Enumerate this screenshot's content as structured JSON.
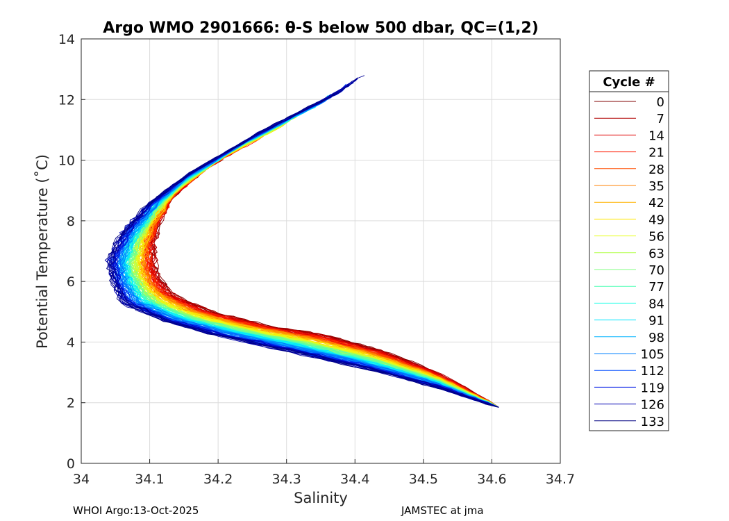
{
  "chart_data": {
    "type": "line",
    "title": "Argo WMO 2901666: θ-S below 500 dbar,  QC=(1,2)",
    "xlabel": "Salinity",
    "ylabel": "Potential Temperature (˚C)",
    "xlim": [
      34.0,
      34.7
    ],
    "ylim": [
      0,
      14
    ],
    "xticks": [
      "34",
      "34.1",
      "34.2",
      "34.3",
      "34.4",
      "34.5",
      "34.6",
      "34.7"
    ],
    "yticks": [
      "0",
      "2",
      "4",
      "6",
      "8",
      "10",
      "12",
      "14"
    ],
    "grid": true,
    "legend": {
      "title": "Cycle #",
      "placement": "outside-right",
      "entries": [
        "0",
        "7",
        "14",
        "21",
        "28",
        "35",
        "42",
        "49",
        "56",
        "63",
        "70",
        "77",
        "84",
        "91",
        "98",
        "105",
        "112",
        "119",
        "126",
        "133"
      ],
      "colors": [
        "#800000",
        "#b00000",
        "#e00000",
        "#ff1a00",
        "#ff4d00",
        "#ff8000",
        "#ffb300",
        "#ffe600",
        "#e6ff1a",
        "#b3ff4d",
        "#80ff80",
        "#4dffb3",
        "#1affe6",
        "#00e6ff",
        "#00b3ff",
        "#0080ff",
        "#004dff",
        "#001ae6",
        "#0000b3",
        "#000080"
      ]
    },
    "series_shape": {
      "description_profiles": "theta-S profiles below 500 dbar, one line per cycle, colored by cycle number",
      "early_cycle_path": [
        {
          "salinity": 34.61,
          "theta": 1.85
        },
        {
          "salinity": 34.52,
          "theta": 3.0
        },
        {
          "salinity": 34.44,
          "theta": 3.7
        },
        {
          "salinity": 34.36,
          "theta": 4.2
        },
        {
          "salinity": 34.28,
          "theta": 4.5
        },
        {
          "salinity": 34.19,
          "theta": 5.0
        },
        {
          "salinity": 34.13,
          "theta": 5.6
        },
        {
          "salinity": 34.11,
          "theta": 6.2
        },
        {
          "salinity": 34.105,
          "theta": 7.0
        },
        {
          "salinity": 34.11,
          "theta": 7.8
        },
        {
          "salinity": 34.13,
          "theta": 8.7
        },
        {
          "salinity": 34.18,
          "theta": 9.7
        },
        {
          "salinity": 34.26,
          "theta": 10.7
        },
        {
          "salinity": 34.32,
          "theta": 11.5
        }
      ],
      "late_cycle_path": [
        {
          "salinity": 34.61,
          "theta": 1.85
        },
        {
          "salinity": 34.52,
          "theta": 2.5
        },
        {
          "salinity": 34.42,
          "theta": 3.1
        },
        {
          "salinity": 34.32,
          "theta": 3.6
        },
        {
          "salinity": 34.2,
          "theta": 4.2
        },
        {
          "salinity": 34.12,
          "theta": 4.7
        },
        {
          "salinity": 34.06,
          "theta": 5.3
        },
        {
          "salinity": 34.045,
          "theta": 6.0
        },
        {
          "salinity": 34.04,
          "theta": 6.7
        },
        {
          "salinity": 34.06,
          "theta": 7.6
        },
        {
          "salinity": 34.1,
          "theta": 8.6
        },
        {
          "salinity": 34.16,
          "theta": 9.6
        },
        {
          "salinity": 34.26,
          "theta": 10.9
        },
        {
          "salinity": 34.38,
          "theta": 12.3
        },
        {
          "salinity": 34.42,
          "theta": 12.95
        }
      ]
    }
  },
  "footer": {
    "left": "WHOI Argo:13-Oct-2025",
    "right": "JAMSTEC at jma"
  }
}
